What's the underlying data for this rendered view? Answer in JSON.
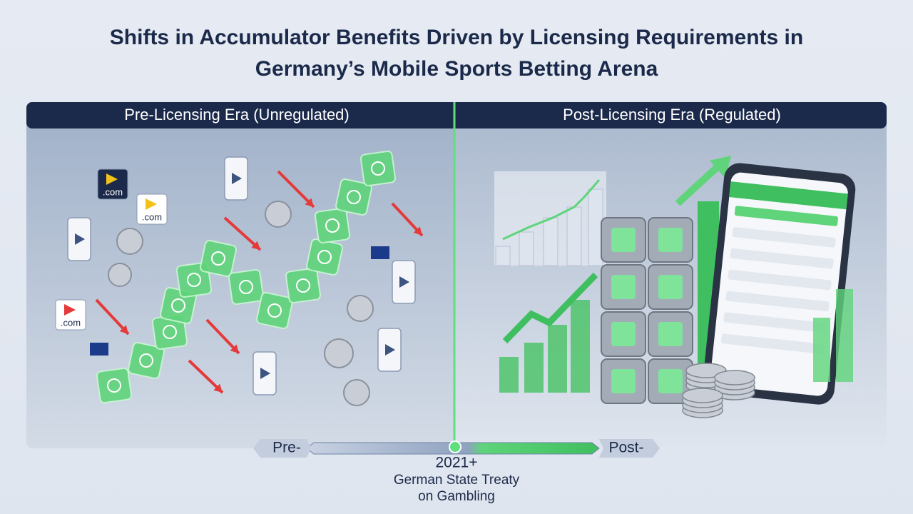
{
  "header": {
    "title_line1": "Shifts in Accumulator Benefits Driven by Licensing Requirements in",
    "title_line2": "Germany’s Mobile Sports Betting Arena"
  },
  "panels": {
    "left": {
      "heading": "Pre-Licensing Era (Unregulated)"
    },
    "right": {
      "heading": "Post-Licensing Era (Regulated)"
    }
  },
  "badges": [
    ".com",
    ".com",
    ".com"
  ],
  "timeline": {
    "pre": "Pre-",
    "post": "Post-",
    "year": "2021+",
    "caption_line1": "German State Treaty",
    "caption_line2": "on Gambling"
  }
}
